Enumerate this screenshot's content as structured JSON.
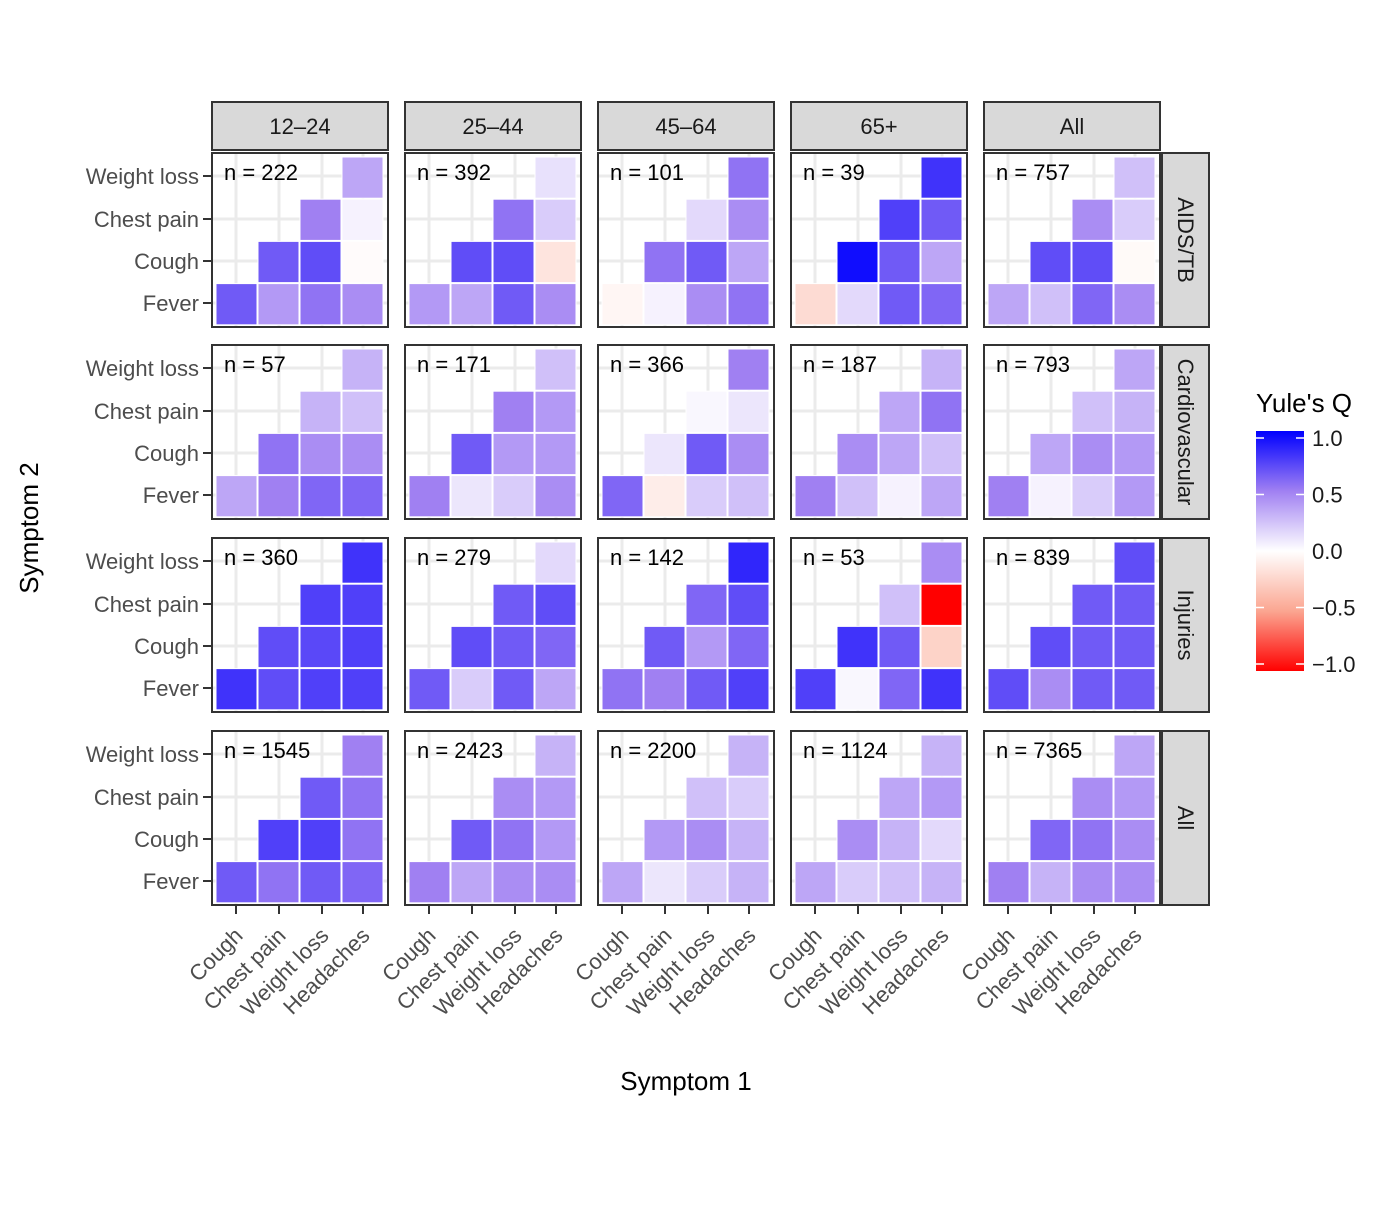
{
  "chart_data": {
    "type": "heatmap",
    "xlabel": "Symptom 1",
    "ylabel": "Symptom 2",
    "x_categories": [
      "Cough",
      "Chest pain",
      "Weight loss",
      "Headaches"
    ],
    "y_categories": [
      "Fever",
      "Cough",
      "Chest pain",
      "Weight loss"
    ],
    "column_facets": [
      "12–24",
      "25–44",
      "45–64",
      "65+",
      "All"
    ],
    "row_facets": [
      "AIDS/TB",
      "Cardiovascular",
      "Injuries",
      "All"
    ],
    "legend": {
      "title": "Yule's Q",
      "ticks": [
        "1.0",
        "0.5",
        "0.0",
        "−0.5",
        "−1.0"
      ],
      "tick_values": [
        1.0,
        0.5,
        0.0,
        -0.5,
        -1.0
      ],
      "range": [
        -1,
        1
      ],
      "colors": {
        "low": "#ff0000",
        "mid": "#ffffff",
        "high": "#0000ff"
      },
      "placement": "right"
    },
    "grid": true,
    "panels": [
      [
        {
          "n": "n = 222",
          "q": {
            "Fever": [
              0.65,
              0.4,
              0.55,
              0.45
            ],
            "Cough": [
              null,
              0.65,
              0.7,
              -0.02
            ],
            "Chest pain": [
              null,
              null,
              0.5,
              0.05
            ],
            "Weight loss": [
              null,
              null,
              null,
              0.35
            ]
          }
        },
        {
          "n": "n = 392",
          "q": {
            "Fever": [
              0.4,
              0.35,
              0.65,
              0.45
            ],
            "Cough": [
              null,
              0.7,
              0.7,
              -0.15
            ],
            "Chest pain": [
              null,
              null,
              0.55,
              0.2
            ],
            "Weight loss": [
              null,
              null,
              null,
              0.12
            ]
          }
        },
        {
          "n": "n = 101",
          "q": {
            "Fever": [
              -0.05,
              0.05,
              0.45,
              0.55
            ],
            "Cough": [
              null,
              0.55,
              0.65,
              0.35
            ],
            "Chest pain": [
              null,
              null,
              0.15,
              0.45
            ],
            "Weight loss": [
              null,
              null,
              null,
              0.55
            ]
          }
        },
        {
          "n": "n = 39",
          "q": {
            "Fever": [
              -0.2,
              0.15,
              0.65,
              0.6
            ],
            "Cough": [
              null,
              0.95,
              0.65,
              0.35
            ],
            "Chest pain": [
              null,
              null,
              0.75,
              0.65
            ],
            "Weight loss": [
              null,
              null,
              null,
              0.8
            ]
          }
        },
        {
          "n": "n = 757",
          "q": {
            "Fever": [
              0.35,
              0.25,
              0.6,
              0.45
            ],
            "Cough": [
              null,
              0.7,
              0.7,
              -0.03
            ],
            "Chest pain": [
              null,
              null,
              0.45,
              0.2
            ],
            "Weight loss": [
              null,
              null,
              null,
              0.25
            ]
          }
        }
      ],
      [
        {
          "n": "n = 57",
          "q": {
            "Fever": [
              0.35,
              0.5,
              0.6,
              0.6
            ],
            "Cough": [
              null,
              0.55,
              0.45,
              0.45
            ],
            "Chest pain": [
              null,
              null,
              0.3,
              0.25
            ],
            "Weight loss": [
              null,
              null,
              null,
              0.3
            ]
          }
        },
        {
          "n": "n = 171",
          "q": {
            "Fever": [
              0.5,
              0.1,
              0.2,
              0.45
            ],
            "Cough": [
              null,
              0.65,
              0.4,
              0.4
            ],
            "Chest pain": [
              null,
              null,
              0.5,
              0.4
            ],
            "Weight loss": [
              null,
              null,
              null,
              0.25
            ]
          }
        },
        {
          "n": "n = 366",
          "q": {
            "Fever": [
              0.6,
              -0.1,
              0.2,
              0.25
            ],
            "Cough": [
              null,
              0.1,
              0.65,
              0.45
            ],
            "Chest pain": [
              null,
              null,
              0.03,
              0.1
            ],
            "Weight loss": [
              null,
              null,
              null,
              0.5
            ]
          }
        },
        {
          "n": "n = 187",
          "q": {
            "Fever": [
              0.5,
              0.25,
              0.05,
              0.35
            ],
            "Cough": [
              null,
              0.45,
              0.35,
              0.25
            ],
            "Chest pain": [
              null,
              null,
              0.35,
              0.55
            ],
            "Weight loss": [
              null,
              null,
              null,
              0.3
            ]
          }
        },
        {
          "n": "n = 793",
          "q": {
            "Fever": [
              0.5,
              0.05,
              0.2,
              0.4
            ],
            "Cough": [
              null,
              0.35,
              0.45,
              0.4
            ],
            "Chest pain": [
              null,
              null,
              0.25,
              0.3
            ],
            "Weight loss": [
              null,
              null,
              null,
              0.35
            ]
          }
        }
      ],
      [
        {
          "n": "n = 360",
          "q": {
            "Fever": [
              0.8,
              0.7,
              0.75,
              0.75
            ],
            "Cough": [
              null,
              0.7,
              0.72,
              0.75
            ],
            "Chest pain": [
              null,
              null,
              0.75,
              0.75
            ],
            "Weight loss": [
              null,
              null,
              null,
              0.8
            ]
          }
        },
        {
          "n": "n = 279",
          "q": {
            "Fever": [
              0.65,
              0.2,
              0.65,
              0.35
            ],
            "Cough": [
              null,
              0.7,
              0.65,
              0.6
            ],
            "Chest pain": [
              null,
              null,
              0.65,
              0.7
            ],
            "Weight loss": [
              null,
              null,
              null,
              0.15
            ]
          }
        },
        {
          "n": "n = 142",
          "q": {
            "Fever": [
              0.55,
              0.5,
              0.65,
              0.75
            ],
            "Cough": [
              null,
              0.65,
              0.4,
              0.6
            ],
            "Chest pain": [
              null,
              null,
              0.6,
              0.7
            ],
            "Weight loss": [
              null,
              null,
              null,
              0.85
            ]
          }
        },
        {
          "n": "n = 53",
          "q": {
            "Fever": [
              0.75,
              0.03,
              0.6,
              0.8
            ],
            "Cough": [
              null,
              0.8,
              0.65,
              -0.25
            ],
            "Chest pain": [
              null,
              null,
              0.25,
              -1.0
            ],
            "Weight loss": [
              null,
              null,
              null,
              0.45
            ]
          }
        },
        {
          "n": "n = 839",
          "q": {
            "Fever": [
              0.7,
              0.45,
              0.65,
              0.65
            ],
            "Cough": [
              null,
              0.7,
              0.65,
              0.65
            ],
            "Chest pain": [
              null,
              null,
              0.65,
              0.65
            ],
            "Weight loss": [
              null,
              null,
              null,
              0.7
            ]
          }
        }
      ],
      [
        {
          "n": "n = 1545",
          "q": {
            "Fever": [
              0.65,
              0.55,
              0.65,
              0.6
            ],
            "Cough": [
              null,
              0.75,
              0.75,
              0.55
            ],
            "Chest pain": [
              null,
              null,
              0.65,
              0.55
            ],
            "Weight loss": [
              null,
              null,
              null,
              0.5
            ]
          }
        },
        {
          "n": "n = 2423",
          "q": {
            "Fever": [
              0.5,
              0.35,
              0.45,
              0.45
            ],
            "Cough": [
              null,
              0.65,
              0.55,
              0.4
            ],
            "Chest pain": [
              null,
              null,
              0.45,
              0.4
            ],
            "Weight loss": [
              null,
              null,
              null,
              0.3
            ]
          }
        },
        {
          "n": "n = 2200",
          "q": {
            "Fever": [
              0.35,
              0.1,
              0.2,
              0.3
            ],
            "Cough": [
              null,
              0.4,
              0.45,
              0.3
            ],
            "Chest pain": [
              null,
              null,
              0.25,
              0.2
            ],
            "Weight loss": [
              null,
              null,
              null,
              0.3
            ]
          }
        },
        {
          "n": "n = 1124",
          "q": {
            "Fever": [
              0.35,
              0.2,
              0.25,
              0.3
            ],
            "Cough": [
              null,
              0.45,
              0.3,
              0.15
            ],
            "Chest pain": [
              null,
              null,
              0.35,
              0.4
            ],
            "Weight loss": [
              null,
              null,
              null,
              0.3
            ]
          }
        },
        {
          "n": "n = 7365",
          "q": {
            "Fever": [
              0.5,
              0.3,
              0.45,
              0.45
            ],
            "Cough": [
              null,
              0.6,
              0.55,
              0.45
            ],
            "Chest pain": [
              null,
              null,
              0.45,
              0.4
            ],
            "Weight loss": [
              null,
              null,
              null,
              0.35
            ]
          }
        }
      ]
    ]
  }
}
